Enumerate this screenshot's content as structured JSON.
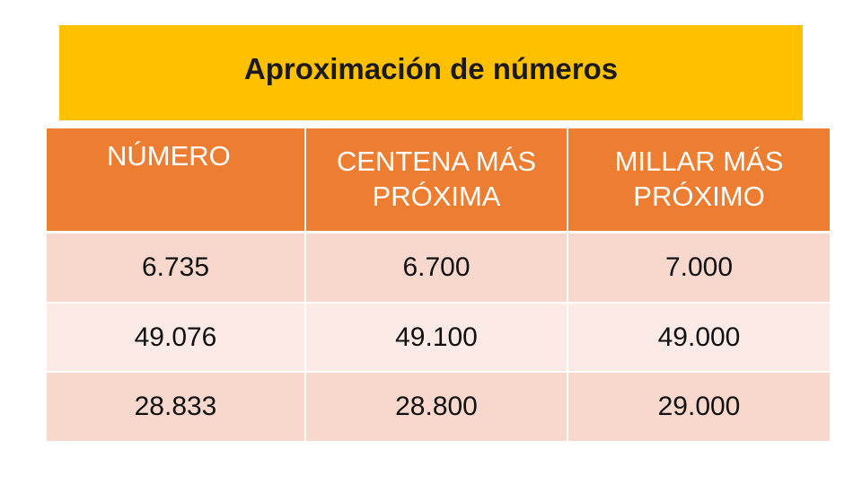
{
  "title": "Aproximación de números",
  "table": {
    "headers": [
      "NÚMERO",
      "CENTENA MÁS PRÓXIMA",
      "MILLAR MÁS PRÓXIMO"
    ],
    "rows": [
      [
        "6.735",
        "6.700",
        "7.000"
      ],
      [
        "49.076",
        "49.100",
        "49.000"
      ],
      [
        "28.833",
        "28.800",
        "29.000"
      ]
    ]
  },
  "colors": {
    "title_bg": "#ffc000",
    "header_bg": "#ed7d31",
    "row_odd": "#f8d7cd",
    "row_even": "#fbeae6"
  }
}
